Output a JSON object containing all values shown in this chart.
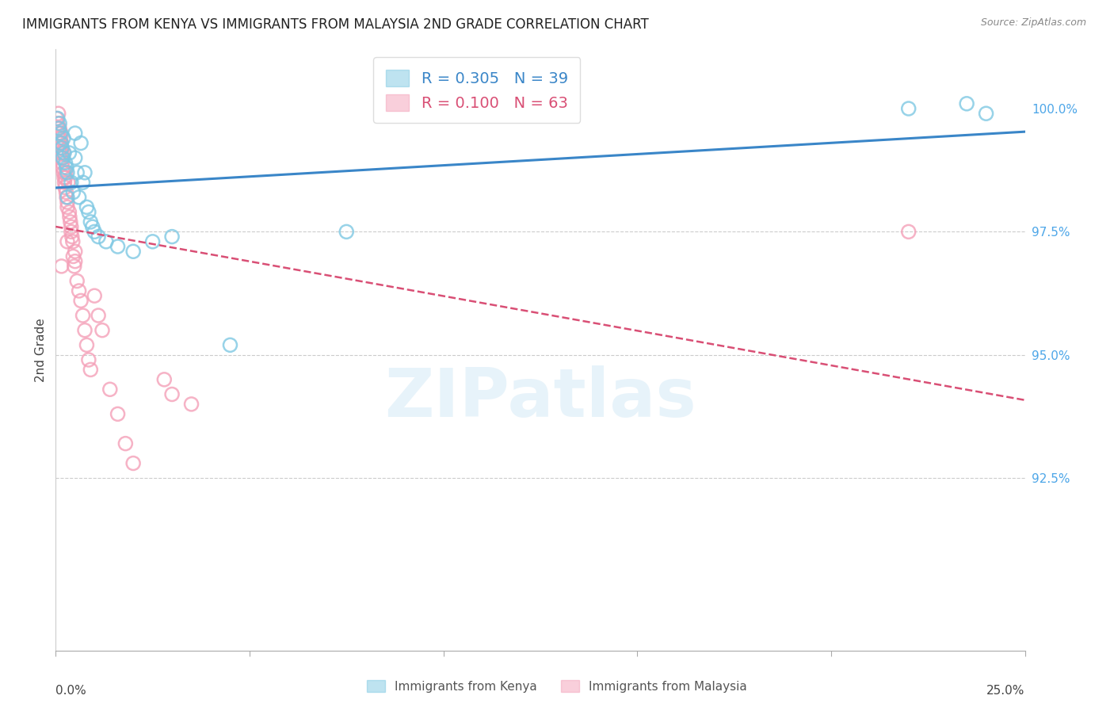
{
  "title": "IMMIGRANTS FROM KENYA VS IMMIGRANTS FROM MALAYSIA 2ND GRADE CORRELATION CHART",
  "source": "Source: ZipAtlas.com",
  "ylabel": "2nd Grade",
  "x_min": 0.0,
  "x_max": 25.0,
  "y_min": 89.0,
  "y_max": 101.2,
  "kenya_R": 0.305,
  "kenya_N": 39,
  "malaysia_R": 0.1,
  "malaysia_N": 63,
  "kenya_color": "#7ec8e3",
  "malaysia_color": "#f4a0b8",
  "kenya_line_color": "#3a86c8",
  "malaysia_line_color": "#d94f75",
  "watermark_color": "#deeef8",
  "grid_color": "#cccccc",
  "right_tick_color": "#4da6e8",
  "kenya_scatter_x": [
    0.05,
    0.08,
    0.1,
    0.12,
    0.14,
    0.16,
    0.18,
    0.2,
    0.22,
    0.25,
    0.28,
    0.3,
    0.35,
    0.4,
    0.45,
    0.5,
    0.55,
    0.6,
    0.65,
    0.7,
    0.75,
    0.8,
    0.85,
    0.9,
    0.95,
    1.0,
    1.1,
    1.3,
    1.6,
    2.0,
    2.5,
    3.0,
    4.5,
    7.5,
    22.0,
    23.5,
    24.0,
    0.3,
    0.5
  ],
  "kenya_scatter_y": [
    99.8,
    99.6,
    99.7,
    99.5,
    99.3,
    99.2,
    99.0,
    99.4,
    99.1,
    98.9,
    98.8,
    98.7,
    99.1,
    98.5,
    98.3,
    99.0,
    98.7,
    98.2,
    99.3,
    98.5,
    98.7,
    98.0,
    97.9,
    97.7,
    97.6,
    97.5,
    97.4,
    97.3,
    97.2,
    97.1,
    97.3,
    97.4,
    95.2,
    97.5,
    100.0,
    100.1,
    99.9,
    98.2,
    99.5
  ],
  "malaysia_scatter_x": [
    0.02,
    0.04,
    0.05,
    0.06,
    0.07,
    0.08,
    0.09,
    0.1,
    0.1,
    0.11,
    0.12,
    0.13,
    0.14,
    0.15,
    0.15,
    0.16,
    0.17,
    0.18,
    0.19,
    0.2,
    0.2,
    0.22,
    0.23,
    0.24,
    0.25,
    0.26,
    0.27,
    0.28,
    0.3,
    0.3,
    0.32,
    0.35,
    0.36,
    0.38,
    0.4,
    0.4,
    0.42,
    0.44,
    0.45,
    0.48,
    0.5,
    0.5,
    0.55,
    0.6,
    0.65,
    0.7,
    0.75,
    0.8,
    0.85,
    0.9,
    1.0,
    1.1,
    1.2,
    1.4,
    1.6,
    1.8,
    2.0,
    2.8,
    3.0,
    3.5,
    0.3,
    22.0,
    0.15
  ],
  "malaysia_scatter_y": [
    99.8,
    99.6,
    99.7,
    99.5,
    99.9,
    99.4,
    99.3,
    99.6,
    99.2,
    99.1,
    99.0,
    99.4,
    99.5,
    99.3,
    99.1,
    99.2,
    98.9,
    98.8,
    99.0,
    98.7,
    99.1,
    98.6,
    98.5,
    98.4,
    98.6,
    98.7,
    98.3,
    98.2,
    98.1,
    98.0,
    98.5,
    97.9,
    97.8,
    97.7,
    97.5,
    97.6,
    97.4,
    97.3,
    97.0,
    96.8,
    96.9,
    97.1,
    96.5,
    96.3,
    96.1,
    95.8,
    95.5,
    95.2,
    94.9,
    94.7,
    96.2,
    95.8,
    95.5,
    94.3,
    93.8,
    93.2,
    92.8,
    94.5,
    94.2,
    94.0,
    97.3,
    97.5,
    96.8
  ]
}
